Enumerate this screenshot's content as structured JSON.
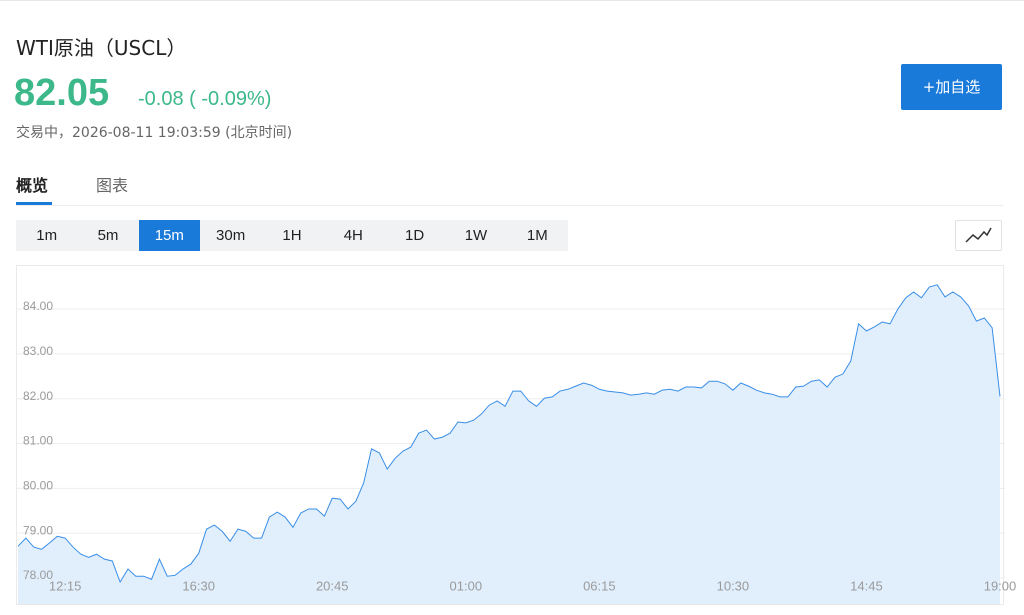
{
  "header": {
    "title": "WTI原油（USCL）",
    "price": "82.05",
    "change": "-0.08 ( -0.09%)",
    "status": "交易中，2026-08-11 19:03:59 (北京时间)"
  },
  "button": "+加自选",
  "tabs": [
    "概览",
    "图表"
  ],
  "intervals": [
    "1m",
    "5m",
    "15m",
    "30m",
    "1H",
    "4H",
    "1D",
    "1W",
    "1M"
  ],
  "chart_data": {
    "type": "area",
    "color": "#3a8ee6",
    "fill_color": "#e1effd",
    "grid": true,
    "categories": [
      null,
      null,
      null,
      null,
      null,
      null,
      "12:15",
      null,
      null,
      null,
      null,
      null,
      null,
      null,
      null,
      null,
      null,
      null,
      null,
      null,
      null,
      null,
      null,
      "16:30",
      null,
      null,
      null,
      null,
      null,
      null,
      null,
      null,
      null,
      null,
      null,
      null,
      null,
      null,
      null,
      null,
      "20:45",
      null,
      null,
      null,
      null,
      null,
      null,
      null,
      null,
      null,
      null,
      null,
      null,
      null,
      null,
      null,
      null,
      "01:00",
      null,
      null,
      null,
      null,
      null,
      null,
      null,
      null,
      null,
      null,
      null,
      null,
      null,
      null,
      null,
      null,
      "06:15",
      null,
      null,
      null,
      null,
      null,
      null,
      null,
      null,
      null,
      null,
      null,
      null,
      null,
      null,
      null,
      null,
      "10:30",
      null,
      null,
      null,
      null,
      null,
      null,
      null,
      null,
      null,
      null,
      null,
      null,
      null,
      null,
      null,
      null,
      "14:45",
      null,
      null,
      null,
      null,
      null,
      null,
      null,
      null,
      null,
      null,
      null,
      null,
      null,
      null,
      null,
      null,
      "19:00"
    ],
    "values": [
      78.71,
      78.89,
      78.69,
      78.64,
      78.78,
      78.93,
      78.89,
      78.69,
      78.53,
      78.46,
      78.53,
      78.42,
      78.38,
      77.91,
      78.2,
      78.04,
      78.04,
      77.97,
      78.42,
      78.04,
      78.06,
      78.2,
      78.31,
      78.55,
      79.09,
      79.18,
      79.04,
      78.82,
      79.09,
      79.04,
      78.89,
      78.89,
      79.36,
      79.47,
      79.36,
      79.13,
      79.45,
      79.54,
      79.54,
      79.38,
      79.78,
      79.76,
      79.54,
      79.71,
      80.12,
      80.88,
      80.79,
      80.43,
      80.67,
      80.83,
      80.92,
      81.23,
      81.3,
      81.1,
      81.14,
      81.23,
      81.48,
      81.46,
      81.52,
      81.66,
      81.86,
      81.95,
      81.83,
      82.17,
      82.17,
      81.95,
      81.83,
      82.01,
      82.04,
      82.17,
      82.21,
      82.28,
      82.35,
      82.3,
      82.21,
      82.17,
      82.15,
      82.13,
      82.08,
      82.1,
      82.13,
      82.1,
      82.19,
      82.21,
      82.17,
      82.26,
      82.26,
      82.24,
      82.39,
      82.39,
      82.33,
      82.19,
      82.35,
      82.28,
      82.19,
      82.13,
      82.1,
      82.04,
      82.04,
      82.26,
      82.28,
      82.39,
      82.42,
      82.26,
      82.48,
      82.55,
      82.84,
      83.67,
      83.51,
      83.6,
      83.71,
      83.67,
      84.0,
      84.25,
      84.38,
      84.25,
      84.49,
      84.54,
      84.27,
      84.38,
      84.27,
      84.07,
      83.73,
      83.8,
      83.58,
      82.05
    ],
    "ylim": [
      77.42,
      84.96
    ],
    "yticks": [
      {
        "value": 78,
        "label": "78.00"
      },
      {
        "value": 79,
        "label": "79.00"
      },
      {
        "value": 80,
        "label": "80.00"
      },
      {
        "value": 81,
        "label": "81.00"
      },
      {
        "value": 82,
        "label": "82.00"
      },
      {
        "value": 83,
        "label": "83.00"
      },
      {
        "value": 84,
        "label": "84.00"
      }
    ]
  }
}
